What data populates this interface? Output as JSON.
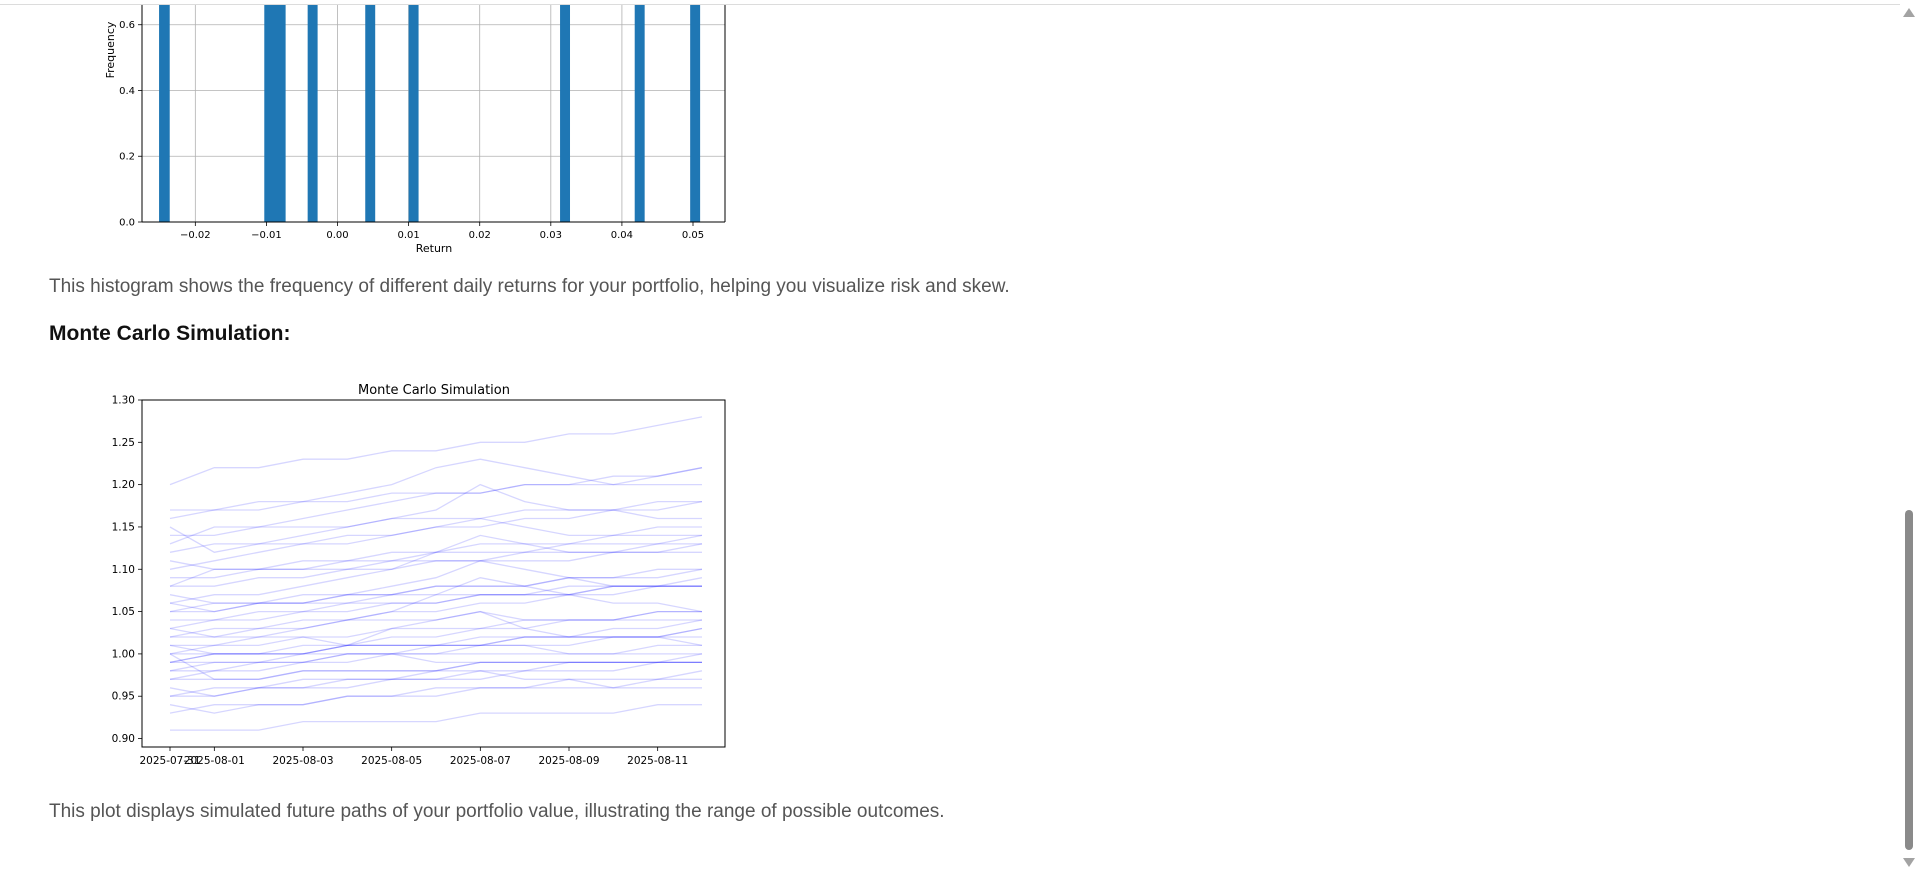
{
  "histogram": {
    "chart_data": {
      "type": "bar",
      "xlabel": "Return",
      "ylabel": "Frequency",
      "xlim": [
        -0.0275,
        0.0545
      ],
      "ylim": [
        0,
        0.66
      ],
      "x_ticks": [
        "−0.02",
        "−0.01",
        "0.00",
        "0.01",
        "0.02",
        "0.03",
        "0.04",
        "0.05"
      ],
      "y_ticks": [
        "0.0",
        "0.2",
        "0.4",
        "0.6"
      ],
      "grid": true,
      "bar_color": "#1f77b4",
      "bars": [
        {
          "x0": -0.0251,
          "x1": -0.0236,
          "value": 0.66
        },
        {
          "x0": -0.0103,
          "x1": -0.0073,
          "value": 0.66
        },
        {
          "x0": -0.0042,
          "x1": -0.0028,
          "value": 0.66
        },
        {
          "x0": 0.0039,
          "x1": 0.0053,
          "value": 0.66
        },
        {
          "x0": 0.01,
          "x1": 0.0114,
          "value": 0.66
        },
        {
          "x0": 0.0313,
          "x1": 0.0327,
          "value": 0.66
        },
        {
          "x0": 0.0418,
          "x1": 0.0432,
          "value": 0.66
        },
        {
          "x0": 0.0496,
          "x1": 0.051,
          "value": 0.66
        }
      ]
    }
  },
  "text": {
    "histogram_caption": "This histogram shows the frequency of different daily returns for your portfolio, helping you visualize risk and skew.",
    "monte_carlo_heading": "Monte Carlo Simulation:",
    "monte_carlo_caption": "This plot displays simulated future paths of your portfolio value, illustrating the range of possible outcomes."
  },
  "monte_carlo": {
    "chart_data": {
      "type": "line",
      "title": "Monte Carlo Simulation",
      "xlabel": "",
      "ylabel": "",
      "x_ticks": [
        "2025-07-31",
        "2025-08-01",
        "2025-08-03",
        "2025-08-05",
        "2025-08-07",
        "2025-08-09",
        "2025-08-11"
      ],
      "x_dates": [
        "2025-07-31",
        "2025-08-01",
        "2025-08-02",
        "2025-08-03",
        "2025-08-04",
        "2025-08-05",
        "2025-08-06",
        "2025-08-07",
        "2025-08-08",
        "2025-08-09",
        "2025-08-10",
        "2025-08-11",
        "2025-08-12"
      ],
      "y_ticks": [
        "0.90",
        "0.95",
        "1.00",
        "1.05",
        "1.10",
        "1.15",
        "1.20",
        "1.25",
        "1.30"
      ],
      "ylim": [
        0.89,
        1.3
      ],
      "line_color": "#0000ff",
      "line_alpha": 0.1,
      "grid": false,
      "series": [
        {
          "values": [
            0.99,
            1.0,
            1.0,
            1.0,
            1.01,
            1.01,
            1.01,
            1.02,
            1.02,
            1.02,
            1.02,
            1.02,
            1.03
          ]
        },
        {
          "values": [
            1.17,
            1.17,
            1.18,
            1.18,
            1.18,
            1.19,
            1.19,
            1.19,
            1.2,
            1.2,
            1.2,
            1.21,
            1.22
          ]
        },
        {
          "values": [
            1.0,
            0.97,
            0.97,
            0.98,
            0.98,
            0.98,
            0.98,
            0.99,
            0.99,
            0.99,
            0.99,
            0.99,
            0.99
          ]
        },
        {
          "values": [
            0.95,
            0.96,
            0.96,
            0.97,
            0.97,
            0.97,
            0.98,
            0.98,
            0.98,
            0.99,
            0.99,
            0.99,
            1.0
          ]
        },
        {
          "values": [
            1.05,
            1.05,
            1.06,
            1.06,
            1.07,
            1.07,
            1.08,
            1.08,
            1.08,
            1.09,
            1.09,
            1.1,
            1.1
          ]
        },
        {
          "values": [
            1.08,
            1.1,
            1.1,
            1.11,
            1.11,
            1.12,
            1.12,
            1.13,
            1.13,
            1.13,
            1.14,
            1.14,
            1.14
          ]
        },
        {
          "values": [
            0.93,
            0.94,
            0.94,
            0.94,
            0.95,
            0.95,
            0.95,
            0.96,
            0.96,
            0.96,
            0.96,
            0.97,
            0.97
          ]
        },
        {
          "values": [
            1.02,
            1.03,
            1.03,
            1.04,
            1.04,
            1.05,
            1.05,
            1.06,
            1.06,
            1.07,
            1.07,
            1.08,
            1.08
          ]
        },
        {
          "values": [
            1.15,
            1.12,
            1.13,
            1.13,
            1.14,
            1.14,
            1.15,
            1.15,
            1.16,
            1.16,
            1.17,
            1.17,
            1.18
          ]
        },
        {
          "values": [
            0.98,
            0.99,
            0.99,
            1.0,
            1.01,
            1.03,
            1.04,
            1.05,
            1.03,
            1.02,
            1.02,
            1.02,
            1.01
          ]
        },
        {
          "values": [
            1.1,
            1.11,
            1.12,
            1.13,
            1.13,
            1.14,
            1.15,
            1.16,
            1.15,
            1.14,
            1.14,
            1.15,
            1.15
          ]
        },
        {
          "values": [
            0.91,
            0.91,
            0.91,
            0.92,
            0.92,
            0.92,
            0.92,
            0.93,
            0.93,
            0.93,
            0.93,
            0.94,
            0.94
          ]
        },
        {
          "values": [
            1.01,
            1.01,
            1.02,
            1.03,
            1.04,
            1.05,
            1.07,
            1.09,
            1.08,
            1.07,
            1.06,
            1.06,
            1.05
          ]
        },
        {
          "values": [
            1.06,
            1.07,
            1.07,
            1.08,
            1.09,
            1.1,
            1.12,
            1.14,
            1.13,
            1.12,
            1.12,
            1.12,
            1.13
          ]
        },
        {
          "values": [
            0.97,
            0.97,
            0.97,
            0.98,
            0.98,
            0.98,
            0.98,
            0.99,
            0.99,
            0.99,
            0.99,
            0.99,
            0.99
          ]
        },
        {
          "values": [
            1.04,
            1.04,
            1.05,
            1.05,
            1.06,
            1.06,
            1.06,
            1.07,
            1.07,
            1.07,
            1.08,
            1.08,
            1.09
          ]
        },
        {
          "values": [
            1.2,
            1.22,
            1.22,
            1.23,
            1.23,
            1.24,
            1.24,
            1.25,
            1.25,
            1.26,
            1.26,
            1.27,
            1.28
          ]
        },
        {
          "values": [
            0.99,
            0.99,
            0.99,
            0.99,
            1.0,
            1.0,
            1.0,
            1.0,
            1.0,
            1.0,
            1.0,
            1.01,
            1.01
          ]
        },
        {
          "values": [
            1.12,
            1.13,
            1.13,
            1.14,
            1.15,
            1.16,
            1.17,
            1.2,
            1.18,
            1.17,
            1.17,
            1.16,
            1.16
          ]
        },
        {
          "values": [
            0.96,
            0.95,
            0.96,
            0.96,
            0.97,
            0.97,
            0.97,
            0.98,
            0.97,
            0.97,
            0.96,
            0.96,
            0.96
          ]
        },
        {
          "values": [
            1.03,
            1.02,
            1.03,
            1.03,
            1.04,
            1.04,
            1.04,
            1.05,
            1.04,
            1.04,
            1.04,
            1.04,
            1.04
          ]
        },
        {
          "values": [
            1.08,
            1.08,
            1.09,
            1.09,
            1.1,
            1.1,
            1.11,
            1.11,
            1.11,
            1.11,
            1.12,
            1.12,
            1.12
          ]
        },
        {
          "values": [
            1.0,
            1.01,
            1.01,
            1.02,
            1.02,
            1.03,
            1.03,
            1.03,
            1.04,
            1.04,
            1.04,
            1.05,
            1.05
          ]
        },
        {
          "values": [
            0.94,
            0.93,
            0.94,
            0.94,
            0.95,
            0.95,
            0.96,
            0.96,
            0.96,
            0.97,
            0.97,
            0.97,
            0.98
          ]
        },
        {
          "values": [
            1.16,
            1.17,
            1.17,
            1.18,
            1.19,
            1.2,
            1.22,
            1.23,
            1.22,
            1.21,
            1.2,
            1.2,
            1.2
          ]
        },
        {
          "values": [
            1.02,
            1.02,
            1.02,
            1.02,
            1.01,
            1.01,
            1.01,
            1.01,
            1.01,
            1.0,
            1.0,
            1.0,
            1.0
          ]
        },
        {
          "values": [
            1.07,
            1.06,
            1.06,
            1.06,
            1.06,
            1.07,
            1.07,
            1.07,
            1.07,
            1.08,
            1.08,
            1.08,
            1.08
          ]
        },
        {
          "values": [
            0.99,
            1.0,
            1.0,
            1.01,
            1.01,
            1.02,
            1.02,
            1.03,
            1.03,
            1.04,
            1.04,
            1.05,
            1.05
          ]
        },
        {
          "values": [
            1.11,
            1.1,
            1.1,
            1.1,
            1.11,
            1.11,
            1.12,
            1.12,
            1.12,
            1.13,
            1.13,
            1.13,
            1.14
          ]
        },
        {
          "values": [
            0.98,
            0.98,
            0.99,
            0.99,
            1.0,
            1.0,
            1.01,
            1.01,
            1.02,
            1.02,
            1.03,
            1.03,
            1.04
          ]
        },
        {
          "values": [
            1.05,
            1.06,
            1.06,
            1.07,
            1.07,
            1.07,
            1.08,
            1.08,
            1.08,
            1.09,
            1.09,
            1.09,
            1.1
          ]
        },
        {
          "values": [
            1.13,
            1.15,
            1.15,
            1.16,
            1.17,
            1.18,
            1.19,
            1.19,
            1.2,
            1.2,
            1.21,
            1.21,
            1.22
          ]
        },
        {
          "values": [
            1.01,
            1.0,
            1.0,
            1.0,
            1.0,
            1.0,
            0.99,
            0.99,
            0.99,
            0.99,
            0.99,
            0.99,
            0.99
          ]
        },
        {
          "values": [
            0.97,
            0.98,
            0.98,
            0.99,
            0.99,
            1.0,
            1.0,
            1.01,
            1.01,
            1.01,
            1.02,
            1.02,
            1.03
          ]
        },
        {
          "values": [
            1.09,
            1.09,
            1.1,
            1.1,
            1.1,
            1.11,
            1.11,
            1.11,
            1.12,
            1.12,
            1.12,
            1.13,
            1.13
          ]
        },
        {
          "values": [
            1.03,
            1.04,
            1.04,
            1.05,
            1.05,
            1.06,
            1.06,
            1.07,
            1.07,
            1.07,
            1.08,
            1.08,
            1.08
          ]
        },
        {
          "values": [
            0.95,
            0.95,
            0.96,
            0.96,
            0.96,
            0.97,
            0.97,
            0.97,
            0.98,
            0.98,
            0.98,
            0.99,
            0.99
          ]
        },
        {
          "values": [
            1.06,
            1.05,
            1.06,
            1.06,
            1.07,
            1.08,
            1.09,
            1.11,
            1.1,
            1.09,
            1.08,
            1.08,
            1.08
          ]
        },
        {
          "values": [
            1.0,
            1.0,
            1.0,
            1.0,
            1.01,
            1.01,
            1.01,
            1.01,
            1.02,
            1.02,
            1.02,
            1.02,
            1.02
          ]
        },
        {
          "values": [
            1.14,
            1.14,
            1.15,
            1.15,
            1.15,
            1.16,
            1.16,
            1.16,
            1.17,
            1.17,
            1.17,
            1.18,
            1.18
          ]
        }
      ]
    }
  }
}
